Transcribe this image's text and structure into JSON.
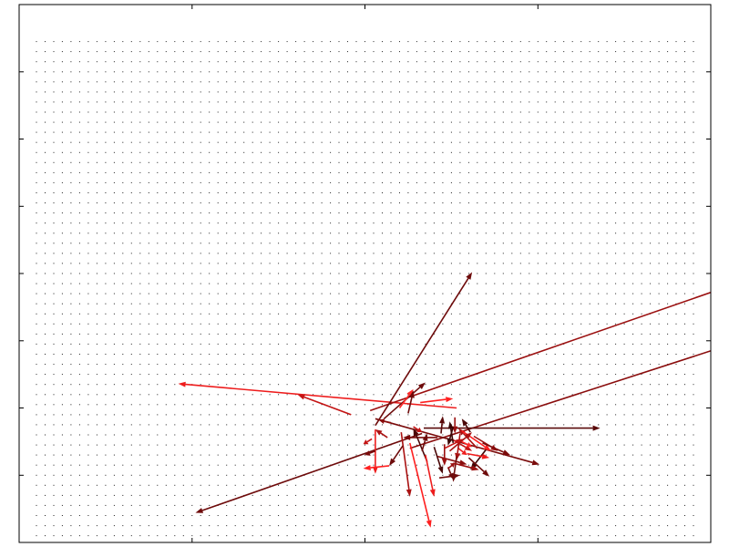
{
  "chart_data": {
    "type": "quiver",
    "title": "",
    "xlabel": "",
    "ylabel": "",
    "xlim": [
      0,
      40
    ],
    "ylim": [
      0,
      40
    ],
    "grid": false,
    "tick_labels_shown": false,
    "background_dots": {
      "x_start": 1,
      "x_end": 39,
      "x_step": 0.5,
      "y_start": 0.5,
      "y_end": 37.5,
      "y_step": 0.75,
      "color": "#222222"
    },
    "arrows": [
      {
        "x": 25.3,
        "y": 10.0,
        "dx": -16.1,
        "dy": 1.8,
        "color": "#ee1c1c"
      },
      {
        "x": 20.3,
        "y": 9.8,
        "dx": 23.3,
        "dy": 10.4,
        "color": "#9b1010"
      },
      {
        "x": 22.6,
        "y": 7.0,
        "dx": 36.0,
        "dy": 15.0,
        "color": "#8a0d0d"
      },
      {
        "x": 20.6,
        "y": 8.7,
        "dx": 5.6,
        "dy": 11.4,
        "color": "#6e0b0b"
      },
      {
        "x": 23.3,
        "y": 8.1,
        "dx": -13.1,
        "dy": -5.9,
        "color": "#6e0b0b"
      },
      {
        "x": 23.4,
        "y": 8.5,
        "dx": 10.2,
        "dy": 0.0,
        "color": "#5a0a0a"
      },
      {
        "x": 20.6,
        "y": 9.2,
        "dx": 9.5,
        "dy": -3.4,
        "color": "#7a0b0b"
      },
      {
        "x": 22.6,
        "y": 7.4,
        "dx": 1.2,
        "dy": -6.3,
        "color": "#ff2020"
      },
      {
        "x": 21.1,
        "y": 9.2,
        "dx": 2.4,
        "dy": 2.7,
        "color": "#6e0b0b"
      },
      {
        "x": 19.2,
        "y": 9.5,
        "dx": -3.1,
        "dy": 1.5,
        "color": "#c41515"
      },
      {
        "x": 22.1,
        "y": 8.2,
        "dx": 0.5,
        "dy": -4.8,
        "color": "#aa1212"
      },
      {
        "x": 20.6,
        "y": 8.4,
        "dx": 0.0,
        "dy": -3.3,
        "color": "#ee1c1c"
      },
      {
        "x": 22.0,
        "y": 10.0,
        "dx": 0.8,
        "dy": 1.4,
        "color": "#ff2a2a"
      },
      {
        "x": 23.2,
        "y": 10.4,
        "dx": 1.9,
        "dy": 0.3,
        "color": "#ff2020"
      },
      {
        "x": 24.4,
        "y": 8.1,
        "dx": 0.1,
        "dy": 1.3,
        "color": "#5a0a0a"
      },
      {
        "x": 24.0,
        "y": 7.1,
        "dx": 0.5,
        "dy": -2.0,
        "color": "#4a0808"
      },
      {
        "x": 25.0,
        "y": 7.7,
        "dx": 1.2,
        "dy": -0.9,
        "color": "#c41515"
      },
      {
        "x": 24.2,
        "y": 6.4,
        "dx": 1.7,
        "dy": -0.6,
        "color": "#8a0d0d"
      },
      {
        "x": 24.8,
        "y": 5.6,
        "dx": 0.3,
        "dy": -0.9,
        "color": "#6e0b0b"
      },
      {
        "x": 25.4,
        "y": 7.0,
        "dx": 0.5,
        "dy": -0.5,
        "color": "#ee1c1c"
      },
      {
        "x": 24.2,
        "y": 7.8,
        "dx": -2.0,
        "dy": 0.0,
        "color": "#7a0b0b"
      },
      {
        "x": 25.1,
        "y": 7.4,
        "dx": -0.2,
        "dy": 1.6,
        "color": "#3a0606"
      },
      {
        "x": 24.6,
        "y": 7.3,
        "dx": 0.0,
        "dy": -1.6,
        "color": "#9b1010"
      },
      {
        "x": 22.2,
        "y": 7.2,
        "dx": -0.8,
        "dy": -1.5,
        "color": "#6e0b0b"
      },
      {
        "x": 21.3,
        "y": 7.8,
        "dx": -0.7,
        "dy": 0.6,
        "color": "#aa1212"
      },
      {
        "x": 20.4,
        "y": 7.7,
        "dx": -0.5,
        "dy": -0.4,
        "color": "#c41515"
      },
      {
        "x": 20.6,
        "y": 6.8,
        "dx": -0.6,
        "dy": -0.3,
        "color": "#7a0b0b"
      },
      {
        "x": 21.4,
        "y": 5.7,
        "dx": -1.5,
        "dy": -0.2,
        "color": "#ff2020"
      },
      {
        "x": 24.8,
        "y": 5.5,
        "dx": 0.4,
        "dy": 0.4,
        "color": "#9b1010"
      },
      {
        "x": 23.6,
        "y": 6.0,
        "dx": -0.8,
        "dy": 2.5,
        "color": "#4a0808"
      },
      {
        "x": 23.3,
        "y": 6.8,
        "dx": 0.3,
        "dy": 1.3,
        "color": "#6e0b0b"
      },
      {
        "x": 25.2,
        "y": 9.3,
        "dx": 0.0,
        "dy": -1.2,
        "color": "#9b1010"
      },
      {
        "x": 25.5,
        "y": 8.1,
        "dx": -0.2,
        "dy": -2.0,
        "color": "#aa1212"
      },
      {
        "x": 24.3,
        "y": 4.8,
        "dx": 1.2,
        "dy": 0.2,
        "color": "#6e0b0b"
      },
      {
        "x": 23.5,
        "y": 6.5,
        "dx": 0.5,
        "dy": -3.1,
        "color": "#ee1c1c"
      },
      {
        "x": 22.5,
        "y": 9.6,
        "dx": 0.3,
        "dy": 1.7,
        "color": "#6e0b0b"
      },
      {
        "x": 21.5,
        "y": 8.9,
        "dx": -0.7,
        "dy": 0.2,
        "color": "#8a0d0d"
      },
      {
        "x": 22.8,
        "y": 8.6,
        "dx": 0.5,
        "dy": -0.4,
        "color": "#c41515"
      },
      {
        "x": 26.5,
        "y": 7.0,
        "dx": -1.1,
        "dy": 1.5,
        "color": "#aa1212"
      },
      {
        "x": 27.0,
        "y": 6.9,
        "dx": -0.9,
        "dy": -1.5,
        "color": "#3a0606"
      },
      {
        "x": 26.0,
        "y": 6.3,
        "dx": 1.2,
        "dy": -1.4,
        "color": "#6e0b0b"
      },
      {
        "x": 25.6,
        "y": 8.3,
        "dx": 1.7,
        "dy": -1.5,
        "color": "#ff2020"
      },
      {
        "x": 26.3,
        "y": 7.9,
        "dx": 1.4,
        "dy": -1.1,
        "color": "#9b1010"
      },
      {
        "x": 24.6,
        "y": 7.0,
        "dx": 1.1,
        "dy": 0.7,
        "color": "#c41515"
      },
      {
        "x": 26.1,
        "y": 8.2,
        "dx": -0.5,
        "dy": 1.0,
        "color": "#4a0808"
      },
      {
        "x": 25.9,
        "y": 6.6,
        "dx": 1.3,
        "dy": -0.3,
        "color": "#ee1c1c"
      },
      {
        "x": 26.8,
        "y": 7.4,
        "dx": 1.6,
        "dy": -0.9,
        "color": "#7a0b0b"
      },
      {
        "x": 25.3,
        "y": 6.4,
        "dx": -0.2,
        "dy": -1.9,
        "color": "#6e0b0b"
      },
      {
        "x": 25.1,
        "y": 5.9,
        "dx": 1.5,
        "dy": -0.5,
        "color": "#9b1010"
      },
      {
        "x": 24.9,
        "y": 6.8,
        "dx": 1.3,
        "dy": 1.4,
        "color": "#aa1212"
      },
      {
        "x": 25.6,
        "y": 7.5,
        "dx": 0.6,
        "dy": -0.4,
        "color": "#ff2a2a"
      },
      {
        "x": 25.1,
        "y": 8.6,
        "dx": -0.3,
        "dy": -1.4,
        "color": "#3a0606"
      }
    ]
  }
}
